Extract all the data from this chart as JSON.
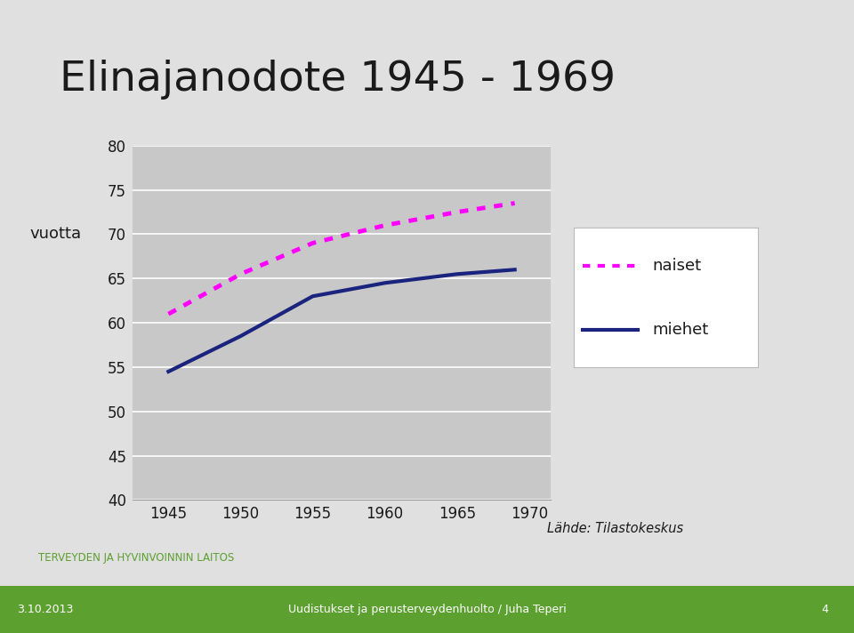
{
  "title": "Elinajanodote 1945 - 1969",
  "ylabel": "vuotta",
  "years": [
    1945,
    1950,
    1955,
    1960,
    1965,
    1969
  ],
  "naiset": [
    61.0,
    65.5,
    69.0,
    71.0,
    72.5,
    73.5
  ],
  "miehet": [
    54.5,
    58.5,
    63.0,
    64.5,
    65.5,
    66.0
  ],
  "naiset_color": "#FF00FF",
  "miehet_color": "#1a237e",
  "plot_bg": "#C8C8C8",
  "slide_bg": "#E0E0E0",
  "white_bg": "#ffffff",
  "ylim_min": 40,
  "ylim_max": 80,
  "yticks": [
    40,
    45,
    50,
    55,
    60,
    65,
    70,
    75,
    80
  ],
  "xticks": [
    1945,
    1950,
    1955,
    1960,
    1965,
    1970
  ],
  "legend_naiset": "naiset",
  "legend_miehet": "miehet",
  "source_text": "Lähde: Tilastokeskus",
  "thl_text": "TERVEYDEN JA HYVINVOINNIN LAITOS",
  "bottom_center": "Uudistukset ja perusterveydenhuolto / Juha Teperi",
  "bottom_left_date": "3.10.2013",
  "bottom_right": "4",
  "bottom_bar_color": "#5ca030",
  "thl_color": "#5ca030",
  "bottom_text_color": "#ffffff"
}
